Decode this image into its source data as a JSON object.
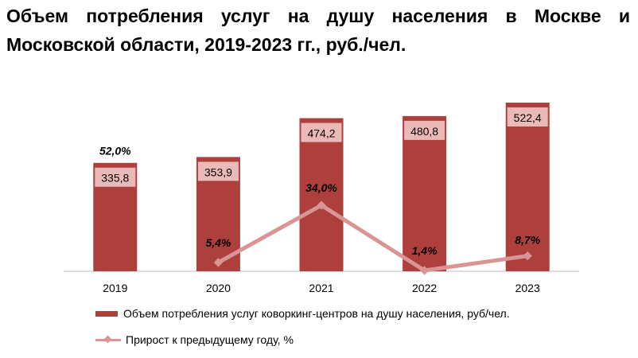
{
  "title": "Объем потребления услуг на душу населения в Москве и Московской области, 2019-2023 гг., руб./чел.",
  "colors": {
    "bar": "#ad3f3c",
    "label_box": "#ebbab8",
    "line": "#d99594"
  },
  "chart_data": {
    "type": "bar",
    "categories": [
      "2019",
      "2020",
      "2021",
      "2022",
      "2023"
    ],
    "series": [
      {
        "name": "Объем потребления услуг коворкинг-центров на душу населения, руб/чел.",
        "type": "bar",
        "values": [
          335.8,
          353.9,
          474.2,
          480.8,
          522.4
        ],
        "labels": [
          "335,8",
          "353,9",
          "474,2",
          "480,8",
          "522,4"
        ]
      },
      {
        "name": "Прирост к предыдущему году, %",
        "type": "line",
        "values": [
          52.0,
          5.4,
          34.0,
          1.4,
          8.7
        ],
        "labels": [
          "52,0%",
          "5,4%",
          "34,0%",
          "1,4%",
          "8,7%"
        ]
      }
    ],
    "legend_position": "bottom"
  }
}
